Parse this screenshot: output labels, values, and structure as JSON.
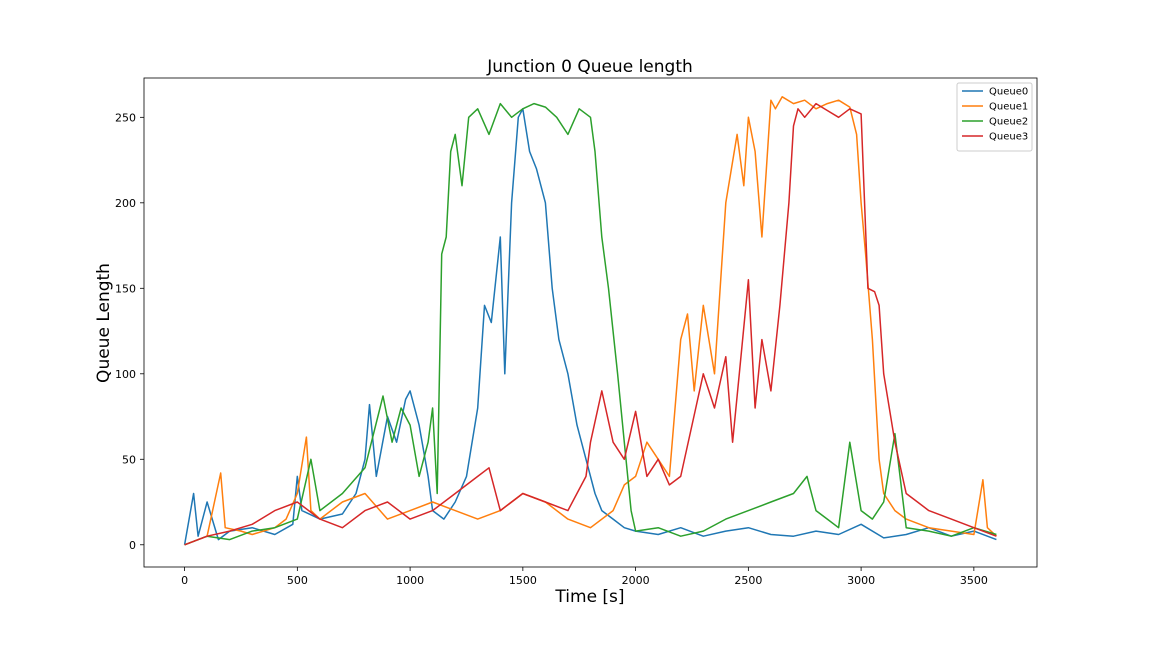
{
  "chart_data": {
    "type": "line",
    "title": "Junction 0 Queue length",
    "xlabel": "Time [s]",
    "ylabel": "Queue Length",
    "xlim": [
      -180,
      3780
    ],
    "ylim": [
      -13,
      273
    ],
    "xticks": [
      0,
      500,
      1000,
      1500,
      2000,
      2500,
      3000,
      3500
    ],
    "yticks": [
      0,
      50,
      100,
      150,
      200,
      250
    ],
    "grid": false,
    "legend_position": "top-right",
    "series": [
      {
        "name": "Queue0",
        "color": "#1f77b4",
        "x": [
          0,
          40,
          60,
          100,
          150,
          200,
          300,
          400,
          480,
          500,
          520,
          600,
          700,
          760,
          800,
          820,
          850,
          900,
          940,
          980,
          1000,
          1040,
          1080,
          1100,
          1150,
          1200,
          1250,
          1300,
          1330,
          1360,
          1400,
          1420,
          1450,
          1480,
          1500,
          1530,
          1560,
          1600,
          1630,
          1660,
          1700,
          1740,
          1780,
          1820,
          1850,
          1900,
          1950,
          2000,
          2100,
          2200,
          2300,
          2400,
          2500,
          2600,
          2700,
          2800,
          2900,
          3000,
          3100,
          3200,
          3300,
          3400,
          3500,
          3600
        ],
        "y": [
          0,
          30,
          5,
          25,
          3,
          8,
          10,
          6,
          12,
          40,
          20,
          15,
          18,
          30,
          50,
          82,
          40,
          75,
          60,
          85,
          90,
          70,
          40,
          20,
          15,
          25,
          40,
          80,
          140,
          130,
          180,
          100,
          200,
          250,
          255,
          230,
          220,
          200,
          150,
          120,
          100,
          70,
          50,
          30,
          20,
          15,
          10,
          8,
          6,
          10,
          5,
          8,
          10,
          6,
          5,
          8,
          6,
          12,
          4,
          6,
          10,
          5,
          8,
          3
        ]
      },
      {
        "name": "Queue1",
        "color": "#ff7f0e",
        "x": [
          0,
          100,
          160,
          180,
          250,
          300,
          400,
          450,
          500,
          540,
          560,
          600,
          700,
          800,
          900,
          1000,
          1100,
          1200,
          1300,
          1400,
          1500,
          1600,
          1700,
          1800,
          1900,
          1950,
          2000,
          2050,
          2100,
          2150,
          2200,
          2230,
          2260,
          2300,
          2350,
          2400,
          2450,
          2480,
          2500,
          2530,
          2560,
          2600,
          2620,
          2650,
          2700,
          2750,
          2800,
          2850,
          2900,
          2950,
          2980,
          3000,
          3020,
          3050,
          3080,
          3100,
          3150,
          3200,
          3300,
          3400,
          3500,
          3540,
          3560,
          3600
        ],
        "y": [
          0,
          5,
          42,
          10,
          8,
          6,
          10,
          15,
          30,
          63,
          20,
          15,
          25,
          30,
          15,
          20,
          25,
          20,
          15,
          20,
          30,
          25,
          15,
          10,
          20,
          35,
          40,
          60,
          50,
          40,
          120,
          135,
          90,
          140,
          100,
          200,
          240,
          210,
          250,
          230,
          180,
          260,
          255,
          262,
          258,
          260,
          255,
          258,
          260,
          256,
          240,
          200,
          170,
          120,
          50,
          30,
          20,
          15,
          10,
          8,
          6,
          38,
          10,
          5
        ]
      },
      {
        "name": "Queue2",
        "color": "#2ca02c",
        "x": [
          0,
          100,
          200,
          300,
          400,
          500,
          560,
          600,
          700,
          800,
          880,
          920,
          960,
          1000,
          1040,
          1080,
          1100,
          1120,
          1140,
          1160,
          1180,
          1200,
          1230,
          1260,
          1300,
          1350,
          1400,
          1450,
          1500,
          1550,
          1600,
          1650,
          1700,
          1750,
          1800,
          1820,
          1850,
          1880,
          1920,
          1950,
          1980,
          2000,
          2100,
          2200,
          2300,
          2400,
          2500,
          2600,
          2700,
          2760,
          2800,
          2850,
          2900,
          2950,
          3000,
          3050,
          3100,
          3150,
          3200,
          3300,
          3400,
          3500,
          3600
        ],
        "y": [
          0,
          5,
          3,
          8,
          10,
          15,
          50,
          20,
          30,
          45,
          87,
          60,
          80,
          70,
          40,
          60,
          80,
          30,
          170,
          180,
          230,
          240,
          210,
          250,
          255,
          240,
          258,
          250,
          255,
          258,
          256,
          250,
          240,
          255,
          250,
          230,
          180,
          150,
          100,
          60,
          20,
          8,
          10,
          5,
          8,
          15,
          20,
          25,
          30,
          40,
          20,
          15,
          10,
          60,
          20,
          15,
          25,
          65,
          10,
          8,
          5,
          10,
          6
        ]
      },
      {
        "name": "Queue3",
        "color": "#d62728",
        "x": [
          0,
          100,
          200,
          300,
          400,
          500,
          600,
          700,
          800,
          900,
          1000,
          1100,
          1200,
          1300,
          1350,
          1400,
          1500,
          1600,
          1700,
          1780,
          1800,
          1850,
          1900,
          1950,
          2000,
          2050,
          2100,
          2150,
          2200,
          2250,
          2300,
          2350,
          2400,
          2430,
          2460,
          2500,
          2530,
          2560,
          2600,
          2640,
          2680,
          2700,
          2720,
          2750,
          2800,
          2850,
          2900,
          2950,
          3000,
          3030,
          3060,
          3080,
          3100,
          3150,
          3200,
          3250,
          3300,
          3400,
          3500,
          3600
        ],
        "y": [
          0,
          5,
          8,
          12,
          20,
          25,
          15,
          10,
          20,
          25,
          15,
          20,
          30,
          40,
          45,
          20,
          30,
          25,
          20,
          40,
          60,
          90,
          60,
          50,
          78,
          40,
          50,
          35,
          40,
          70,
          100,
          80,
          110,
          60,
          100,
          155,
          80,
          120,
          90,
          140,
          200,
          245,
          255,
          250,
          258,
          254,
          250,
          255,
          252,
          150,
          148,
          140,
          100,
          60,
          30,
          25,
          20,
          15,
          10,
          5
        ]
      }
    ]
  }
}
